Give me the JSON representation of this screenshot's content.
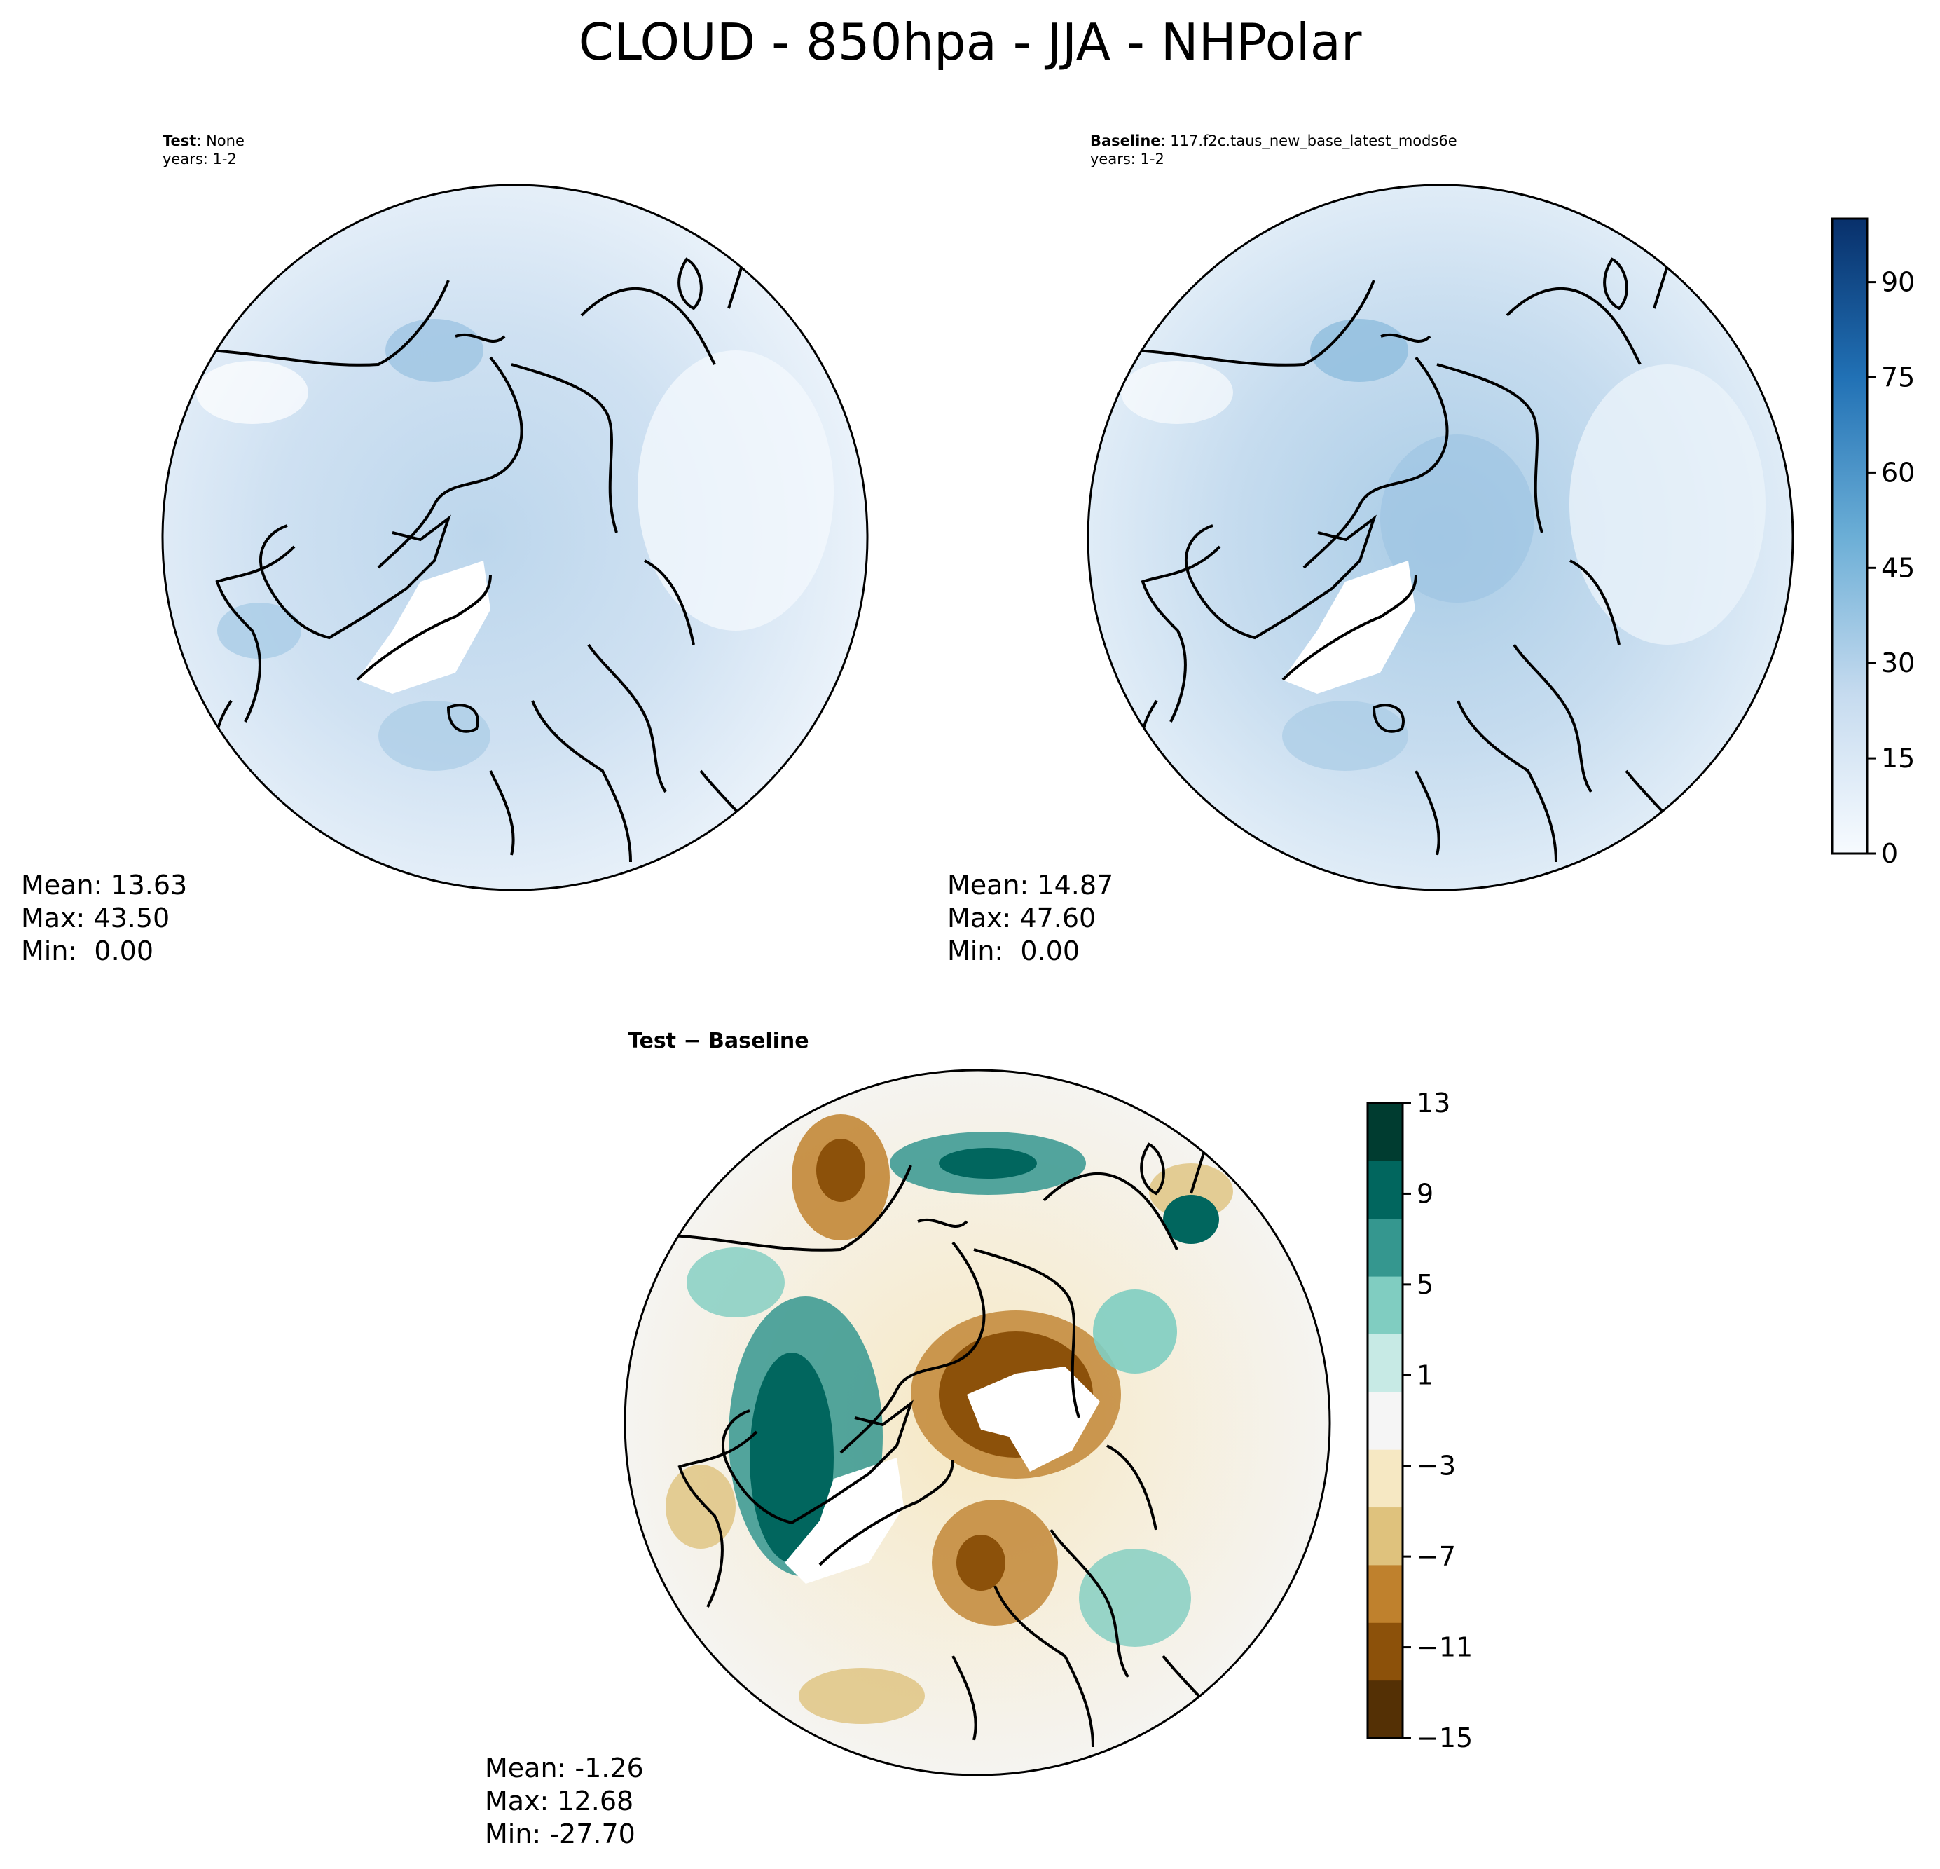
{
  "figure": {
    "title": "CLOUD - 850hpa - JJA - NHPolar"
  },
  "panels": {
    "test": {
      "label_bold": "Test",
      "label_rest": ": None",
      "years": "years: 1-2",
      "mean": "Mean: 13.63",
      "max": "Max: 43.50",
      "min": "Min:  0.00"
    },
    "baseline": {
      "label_bold": "Baseline",
      "label_rest": ": 117.f2c.taus_new_base_latest_mods6e",
      "years": "years: 1-2",
      "mean": "Mean: 14.87",
      "max": "Max: 47.60",
      "min": "Min:  0.00"
    },
    "diff": {
      "label": "Test − Baseline",
      "mean": "Mean: -1.26",
      "max": "Max: 12.68",
      "min": "Min: -27.70"
    }
  },
  "colorbars": {
    "main": {
      "ticks": [
        "0",
        "15",
        "30",
        "45",
        "60",
        "75",
        "90"
      ],
      "tick_values": [
        0,
        15,
        30,
        45,
        60,
        75,
        90
      ],
      "range": [
        0,
        100
      ],
      "levels": 21,
      "colors": [
        "#f7fbff",
        "#08306b"
      ]
    },
    "diff": {
      "ticks": [
        "13",
        "9",
        "5",
        "1",
        "−3",
        "−7",
        "−11",
        "−15"
      ],
      "tick_values": [
        13,
        9,
        5,
        1,
        -3,
        -7,
        -11,
        -15
      ],
      "range": [
        -15,
        13
      ],
      "colors": [
        "#543005",
        "#8c510a",
        "#bf812d",
        "#dfc27d",
        "#f6e8c3",
        "#f5f5f5",
        "#c7eae5",
        "#80cdc1",
        "#35978f",
        "#01665e",
        "#003c30"
      ]
    }
  }
}
